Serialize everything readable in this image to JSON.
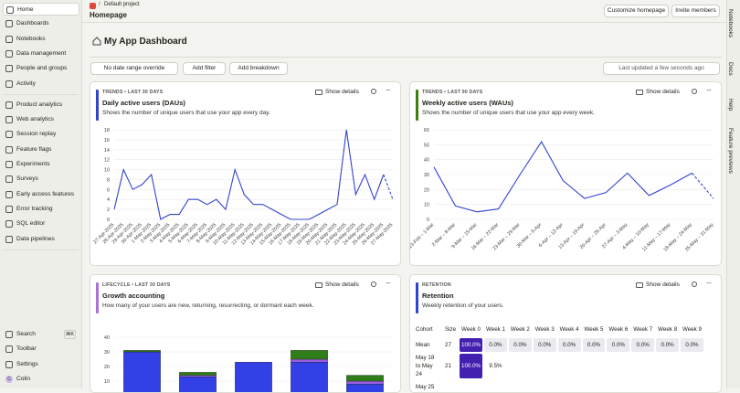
{
  "sidebar": {
    "groups": [
      [
        "Home",
        "Dashboards",
        "Notebooks",
        "Data management",
        "People and groups",
        "Activity"
      ],
      [
        "Product analytics",
        "Web analytics",
        "Session replay",
        "Feature flags",
        "Experiments",
        "Surveys",
        "Early access features",
        "Error tracking",
        "SQL editor",
        "Data pipelines"
      ]
    ],
    "bottom": [
      "Search",
      "Toolbar",
      "Settings",
      "Colin"
    ],
    "search_shortcut": "⌘K",
    "avatar": "C"
  },
  "breadcrumb": {
    "project": "Default project",
    "page": "Homepage"
  },
  "header_actions": [
    "Customize homepage",
    "Invite members"
  ],
  "right_rail": [
    "Notebooks",
    "Docs",
    "Help",
    "Feature previews"
  ],
  "dashboard": {
    "title": "My App Dashboard",
    "filters": {
      "date": "No date range override",
      "add_filter": "Add filter",
      "add_breakdown": "Add breakdown",
      "last_updated": "Last updated a few seconds ago"
    },
    "cards": [
      {
        "tag": "TRENDS • LAST 30 DAYS",
        "title": "Daily active users (DAUs)",
        "description": "Shows the number of unique users that use your app every day.",
        "show_details": "Show details",
        "chart": {
          "type": "line",
          "color": "#3344cc",
          "incomplete_last_period": true,
          "grid": true,
          "categories": [
            "27-Apr-2025",
            "28-Apr-2025",
            "29-Apr-2025",
            "30-Apr-2025",
            "1-May-2025",
            "2-May-2025",
            "3-May-2025",
            "4-May-2025",
            "5-May-2025",
            "6-May-2025",
            "7-May-2025",
            "8-May-2025",
            "9-May-2025",
            "10-May-2025",
            "11-May-2025",
            "12-May-2025",
            "13-May-2025",
            "14-May-2025",
            "15-May-2025",
            "16-May-2025",
            "17-May-2025",
            "18-May-2025",
            "19-May-2025",
            "20-May-2025",
            "21-May-2025",
            "22-May-2025",
            "23-May-2025",
            "24-May-2025",
            "25-May-2025",
            "26-May-2025",
            "27-May-2025"
          ],
          "values": [
            2,
            10,
            6,
            7,
            9,
            0,
            1,
            1,
            4,
            4,
            3,
            4,
            2,
            10,
            5,
            3,
            3,
            2,
            1,
            0,
            0,
            0,
            1,
            2,
            3,
            18,
            5,
            9,
            4,
            9,
            4
          ],
          "ylim": [
            0,
            18
          ],
          "yticks": [
            0,
            2,
            4,
            6,
            8,
            10,
            12,
            14,
            16,
            18
          ]
        }
      },
      {
        "tag": "TRENDS • LAST 90 DAYS",
        "title": "Weekly active users (WAUs)",
        "description": "Shows the number of unique users that use your app every week.",
        "show_details": "Show details",
        "chart": {
          "type": "line",
          "color": "#3344cc",
          "incomplete_last_period": true,
          "grid": true,
          "categories": [
            "23-Feb – 1-Mar",
            "2-Mar – 8-Mar",
            "9-Mar – 15-Mar",
            "16-Mar – 22-Mar",
            "23-Mar – 29-Mar",
            "30-Mar – 5-Apr",
            "6-Apr – 12-Apr",
            "13-Apr – 19-Apr",
            "20-Apr – 26-Apr",
            "27-Apr – 3-May",
            "4-May – 10-May",
            "11-May – 17-May",
            "18-May – 24-May",
            "25-May – 31-May"
          ],
          "values": [
            35,
            9,
            5,
            7,
            30,
            52,
            26,
            14,
            18,
            31,
            16,
            23,
            31,
            14
          ],
          "ylim": [
            0,
            60
          ],
          "yticks": [
            0,
            10,
            20,
            30,
            40,
            50,
            60
          ]
        }
      },
      {
        "tag": "LIFECYCLE • LAST 30 DAYS",
        "title": "Growth accounting",
        "description": "How many of your users are new, returning, resurrecting, or dormant each week.",
        "show_details": "Show details",
        "chart": {
          "type": "stacked_bar",
          "grid": true,
          "categories": [
            null,
            null,
            null,
            null,
            null
          ],
          "series": [
            {
              "color": "#3340e6",
              "values": [
                30,
                13,
                23,
                23,
                8
              ]
            },
            {
              "color": "#9a5de0",
              "values": [
                0,
                1,
                0,
                2,
                2
              ]
            },
            {
              "color": "#2f7d18",
              "values": [
                1,
                2,
                0,
                6,
                4
              ]
            }
          ],
          "ylim": [
            0,
            40
          ],
          "yticks": [
            0,
            10,
            20,
            30,
            40
          ]
        }
      },
      {
        "tag": "RETENTION",
        "title": "Retention",
        "description": "Weekly retention of your users.",
        "show_details": "Show details",
        "table": {
          "header": [
            "Cohort",
            "Size",
            "Week 0",
            "Week 1",
            "Week 2",
            "Week 3",
            "Week 4",
            "Week 5",
            "Week 6",
            "Week 7",
            "Week 8",
            "Week 9"
          ],
          "rows": [
            [
              "Mean",
              "27",
              "100.0%",
              "0.0%",
              "0.0%",
              "0.0%",
              "0.0%",
              "0.0%",
              "0.0%",
              "0.0%",
              "0.0%",
              "0.0%"
            ],
            [
              "May 18 to May 24",
              "21",
              "100.0%",
              "9.5%"
            ],
            [
              "May 25"
            ]
          ]
        }
      }
    ]
  }
}
